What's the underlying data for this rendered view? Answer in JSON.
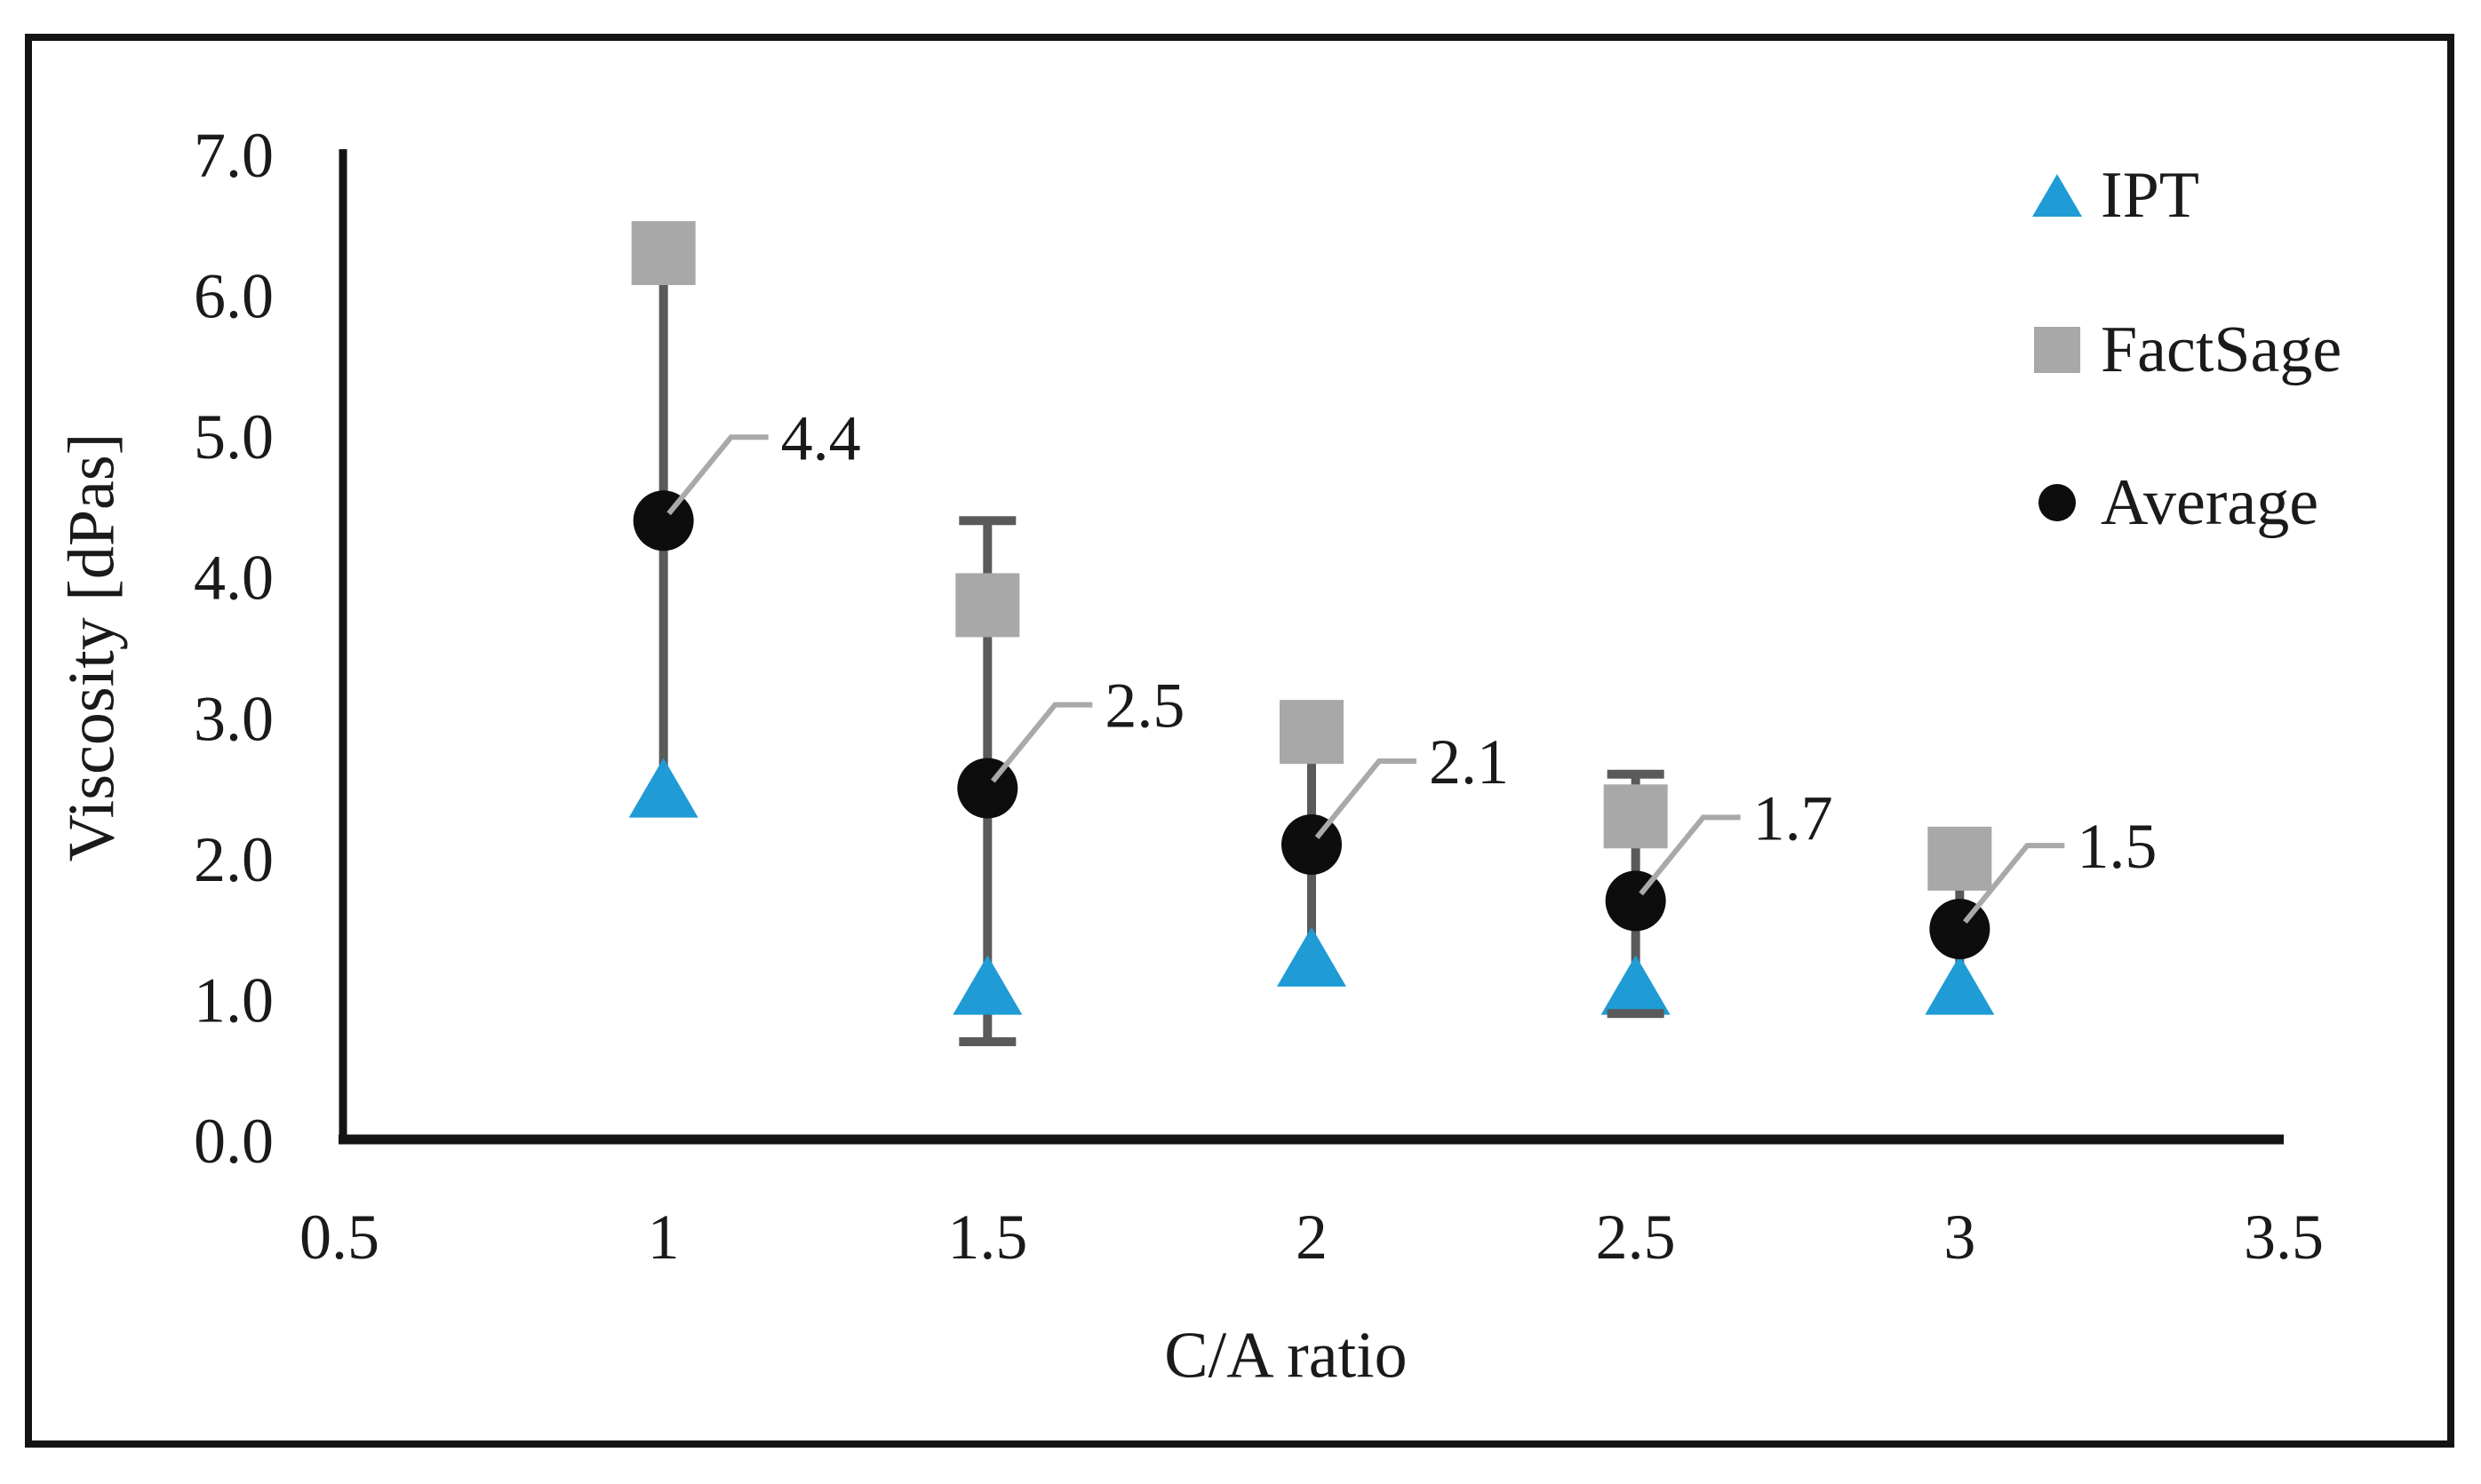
{
  "chart_data": {
    "type": "scatter",
    "title": "",
    "xlabel": "C/A ratio",
    "ylabel": "Viscosity [dPas]",
    "xlim": [
      0.5,
      3.5
    ],
    "ylim": [
      0.0,
      7.0
    ],
    "grid": false,
    "legend_position": "top-right",
    "x_ticks": [
      0.5,
      1,
      1.5,
      2,
      2.5,
      3,
      3.5
    ],
    "x_tick_labels": [
      "0.5",
      "1",
      "1.5",
      "2",
      "2.5",
      "3",
      "3.5"
    ],
    "y_ticks": [
      0,
      1,
      2,
      3,
      4,
      5,
      6,
      7
    ],
    "y_tick_labels": [
      "0.0",
      "1.0",
      "2.0",
      "3.0",
      "4.0",
      "5.0",
      "6.0",
      "7.0"
    ],
    "x": [
      1,
      1.5,
      2,
      2.5,
      3
    ],
    "series": [
      {
        "name": "IPT",
        "marker": "triangle",
        "color": "#1F9BD5",
        "values": [
          2.5,
          1.1,
          1.3,
          1.1,
          1.1
        ]
      },
      {
        "name": "FactSage",
        "marker": "square",
        "color": "#A8A8A8",
        "values": [
          6.3,
          3.8,
          2.9,
          2.3,
          2.0
        ]
      },
      {
        "name": "Average",
        "marker": "circle",
        "color": "#0D0D0D",
        "values": [
          4.4,
          2.5,
          2.1,
          1.7,
          1.5
        ]
      }
    ],
    "data_labels": {
      "series": "Average",
      "texts": [
        "4.4",
        "2.5",
        "2.1",
        "1.7",
        "1.5"
      ],
      "color": "#1A1A1A",
      "leader_color": "#A9A9A9"
    },
    "error_bars": {
      "color": "#5A5A5A",
      "items": [
        {
          "x": 1,
          "low": 2.5,
          "high": 6.3,
          "caps": false
        },
        {
          "x": 1.5,
          "low": 0.7,
          "high": 4.4,
          "caps": true
        },
        {
          "x": 2,
          "low": 1.3,
          "high": 2.9,
          "caps": false
        },
        {
          "x": 2.5,
          "low": 0.9,
          "high": 2.6,
          "caps": true
        },
        {
          "x": 3,
          "low": 1.1,
          "high": 2.0,
          "caps": false
        }
      ]
    },
    "axis_color": "#141414",
    "text_color": "#1A1A1A"
  }
}
